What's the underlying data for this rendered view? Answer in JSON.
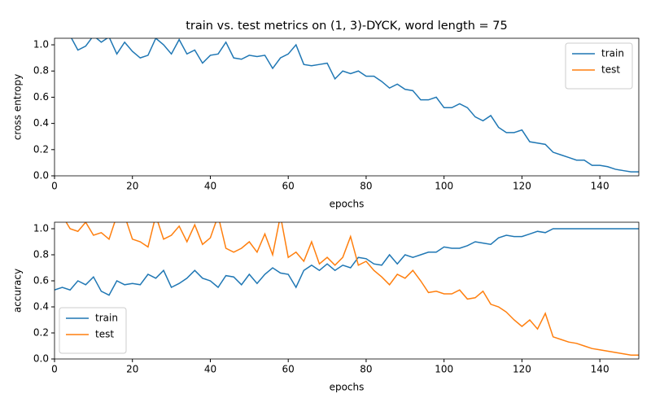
{
  "chart_data": [
    {
      "type": "line",
      "title": "train vs. test metrics on (1, 3)-DYCK, word length = 75",
      "xlabel": "epochs",
      "ylabel": "cross entropy",
      "x": [
        0,
        2,
        4,
        6,
        8,
        10,
        12,
        14,
        16,
        18,
        20,
        22,
        24,
        26,
        28,
        30,
        32,
        34,
        36,
        38,
        40,
        42,
        44,
        46,
        48,
        50,
        52,
        54,
        56,
        58,
        60,
        62,
        64,
        66,
        68,
        70,
        72,
        74,
        76,
        78,
        80,
        82,
        84,
        86,
        88,
        90,
        92,
        94,
        96,
        98,
        100,
        102,
        104,
        106,
        108,
        110,
        112,
        114,
        116,
        118,
        120,
        122,
        124,
        126,
        128,
        130,
        132,
        134,
        136,
        138,
        140,
        142,
        144,
        146,
        148,
        150
      ],
      "series": [
        {
          "name": "train",
          "color": "#1f77b4",
          "values": [
            1.06,
            1.08,
            1.07,
            0.96,
            0.99,
            1.07,
            1.02,
            1.06,
            0.93,
            1.02,
            0.95,
            0.9,
            0.92,
            1.05,
            1.0,
            0.93,
            1.04,
            0.93,
            0.96,
            0.86,
            0.92,
            0.93,
            1.02,
            0.9,
            0.89,
            0.92,
            0.91,
            0.92,
            0.82,
            0.9,
            0.93,
            1.0,
            0.85,
            0.84,
            0.85,
            0.86,
            0.74,
            0.8,
            0.78,
            0.8,
            0.76,
            0.76,
            0.72,
            0.67,
            0.7,
            0.66,
            0.65,
            0.58,
            0.58,
            0.6,
            0.52,
            0.52,
            0.55,
            0.52,
            0.45,
            0.42,
            0.46,
            0.37,
            0.33,
            0.33,
            0.35,
            0.26,
            0.25,
            0.24,
            0.18,
            0.16,
            0.14,
            0.12,
            0.12,
            0.08,
            0.08,
            0.07,
            0.05,
            0.04,
            0.03,
            0.03
          ]
        },
        {
          "name": "test",
          "color": "#ff7f0e",
          "values": [
            null,
            null,
            null,
            null,
            null,
            null,
            null,
            null,
            null,
            null,
            null,
            null,
            null,
            null,
            null,
            null,
            null,
            null,
            null,
            null,
            null,
            null,
            null,
            null,
            null,
            null,
            null,
            null,
            null,
            null,
            null,
            null,
            null,
            null,
            null,
            null,
            null,
            null,
            null,
            null,
            null,
            null,
            null,
            null,
            null,
            null,
            null,
            null,
            null,
            null,
            null,
            null,
            null,
            null,
            null,
            null,
            null,
            null,
            null,
            null,
            null,
            null,
            null,
            null,
            null,
            null,
            null,
            null,
            null,
            null,
            null,
            null,
            null,
            null,
            null,
            null
          ]
        }
      ],
      "xlim": [
        0,
        150
      ],
      "ylim": [
        0,
        1.05
      ],
      "xticks": [
        0,
        20,
        40,
        60,
        80,
        100,
        120,
        140
      ],
      "yticks": [
        {
          "value": 0,
          "label": "0.0"
        },
        0.2,
        0.4,
        0.6,
        0.8,
        {
          "value": 1,
          "label": "1.0"
        }
      ],
      "legend": "upper right"
    },
    {
      "type": "line",
      "xlabel": "epochs",
      "ylabel": "accuracy",
      "x": [
        0,
        2,
        4,
        6,
        8,
        10,
        12,
        14,
        16,
        18,
        20,
        22,
        24,
        26,
        28,
        30,
        32,
        34,
        36,
        38,
        40,
        42,
        44,
        46,
        48,
        50,
        52,
        54,
        56,
        58,
        60,
        62,
        64,
        66,
        68,
        70,
        72,
        74,
        76,
        78,
        80,
        82,
        84,
        86,
        88,
        90,
        92,
        94,
        96,
        98,
        100,
        102,
        104,
        106,
        108,
        110,
        112,
        114,
        116,
        118,
        120,
        122,
        124,
        126,
        128,
        130,
        132,
        134,
        136,
        138,
        140,
        142,
        144,
        146,
        148,
        150
      ],
      "series": [
        {
          "name": "train",
          "color": "#1f77b4",
          "values": [
            0.53,
            0.55,
            0.53,
            0.6,
            0.57,
            0.63,
            0.52,
            0.49,
            0.6,
            0.57,
            0.58,
            0.57,
            0.65,
            0.62,
            0.68,
            0.55,
            0.58,
            0.62,
            0.68,
            0.62,
            0.6,
            0.55,
            0.64,
            0.63,
            0.57,
            0.65,
            0.58,
            0.65,
            0.7,
            0.66,
            0.65,
            0.55,
            0.68,
            0.72,
            0.68,
            0.73,
            0.68,
            0.72,
            0.7,
            0.78,
            0.77,
            0.73,
            0.72,
            0.8,
            0.73,
            0.8,
            0.78,
            0.8,
            0.82,
            0.82,
            0.86,
            0.85,
            0.85,
            0.87,
            0.9,
            0.89,
            0.88,
            0.93,
            0.95,
            0.94,
            0.94,
            0.96,
            0.98,
            0.97,
            1.0,
            1.0,
            1.0,
            1.0,
            1.0,
            1.0,
            1.0,
            1.0,
            1.0,
            1.0,
            1.0,
            1.0
          ]
        },
        {
          "name": "test",
          "color": "#ff7f0e",
          "values": [
            1.1,
            1.1,
            1.0,
            0.98,
            1.05,
            0.95,
            0.97,
            0.92,
            1.1,
            1.1,
            0.92,
            0.9,
            0.86,
            1.1,
            0.92,
            0.95,
            1.02,
            0.9,
            1.03,
            0.88,
            0.93,
            1.1,
            0.85,
            0.82,
            0.85,
            0.9,
            0.82,
            0.96,
            0.8,
            1.1,
            0.78,
            0.82,
            0.75,
            0.9,
            0.73,
            0.78,
            0.72,
            0.78,
            0.94,
            0.72,
            0.75,
            0.68,
            0.63,
            0.57,
            0.65,
            0.62,
            0.68,
            0.6,
            0.51,
            0.52,
            0.5,
            0.5,
            0.53,
            0.46,
            0.47,
            0.52,
            0.42,
            0.4,
            0.36,
            0.3,
            0.25,
            0.3,
            0.23,
            0.35,
            0.17,
            0.15,
            0.13,
            0.12,
            0.1,
            0.08,
            0.07,
            0.06,
            0.05,
            0.04,
            0.03,
            0.03
          ]
        }
      ],
      "xlim": [
        0,
        150
      ],
      "ylim": [
        0,
        1.05
      ],
      "xticks": [
        0,
        20,
        40,
        60,
        80,
        100,
        120,
        140
      ],
      "yticks": [
        {
          "value": 0,
          "label": "0.0"
        },
        0.2,
        0.4,
        0.6,
        0.8,
        {
          "value": 1,
          "label": "1.0"
        }
      ],
      "legend": "lower left"
    }
  ]
}
